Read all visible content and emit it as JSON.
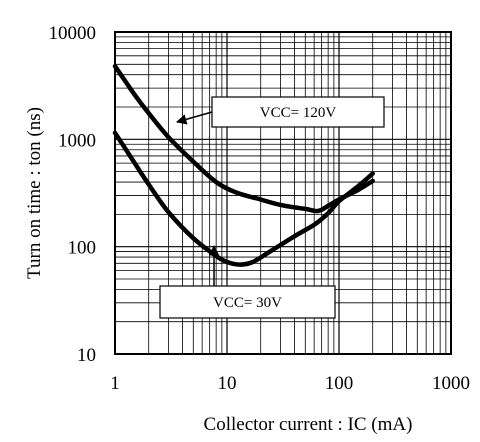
{
  "chart_data": {
    "type": "line",
    "title": "",
    "xlabel": "Collector current : IC (mA)",
    "ylabel": "Turn on time : ton (ns)",
    "x_scale": "log",
    "y_scale": "log",
    "xlim": [
      1,
      1000
    ],
    "ylim": [
      10,
      10000
    ],
    "grid": true,
    "x_ticks": [
      "1",
      "10",
      "100",
      "1000"
    ],
    "y_ticks": [
      "10",
      "100",
      "1000",
      "10000"
    ],
    "series": [
      {
        "name": "VCC= 120V",
        "x": [
          1,
          1.5,
          2,
          3,
          5,
          8,
          12,
          20,
          30,
          50,
          65,
          80,
          100,
          150,
          200
        ],
        "y": [
          4800,
          2600,
          1750,
          1050,
          620,
          400,
          320,
          275,
          245,
          225,
          215,
          240,
          275,
          340,
          410
        ]
      },
      {
        "name": "VCC= 30V",
        "x": [
          1,
          1.5,
          2,
          3,
          5,
          8,
          10,
          13,
          17,
          25,
          40,
          60,
          80,
          100,
          150,
          200
        ],
        "y": [
          1150,
          600,
          380,
          210,
          120,
          82,
          72,
          68,
          72,
          92,
          125,
          160,
          205,
          265,
          370,
          480
        ]
      }
    ],
    "annotations": [
      {
        "text": "VCC= 120V",
        "series": "VCC= 120V"
      },
      {
        "text": "VCC= 30V",
        "series": "VCC= 30V"
      }
    ]
  }
}
